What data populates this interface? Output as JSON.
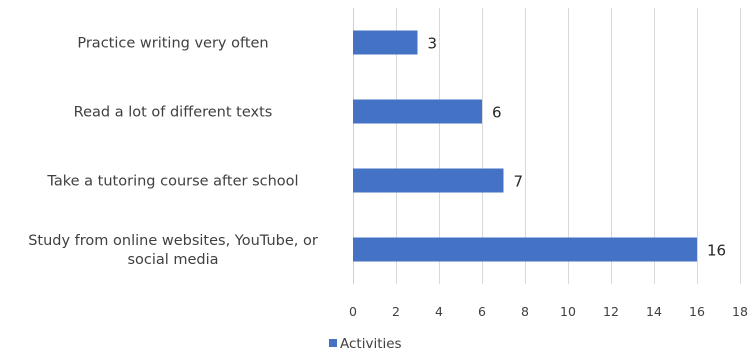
{
  "chart_data": {
    "type": "bar",
    "orientation": "horizontal",
    "categories": [
      "Practice writing very often",
      "Read a lot of different texts",
      "Take a tutoring course after school",
      "Study from online websites, YouTube, or social media"
    ],
    "category_lines": [
      [
        "Practice writing very often"
      ],
      [
        "Read a lot of different texts"
      ],
      [
        "Take a tutoring course after school"
      ],
      [
        "Study from online websites, YouTube, or",
        "social media"
      ]
    ],
    "series": [
      {
        "name": "Activities",
        "values": [
          3,
          6,
          7,
          16
        ],
        "color": "#4472C4"
      }
    ],
    "xlim": [
      0,
      18
    ],
    "x_ticks": [
      0,
      2,
      4,
      6,
      8,
      10,
      12,
      14,
      16,
      18
    ],
    "grid": true,
    "data_labels": true,
    "legend": "bottom-left",
    "title": "",
    "xlabel": "",
    "ylabel": ""
  }
}
